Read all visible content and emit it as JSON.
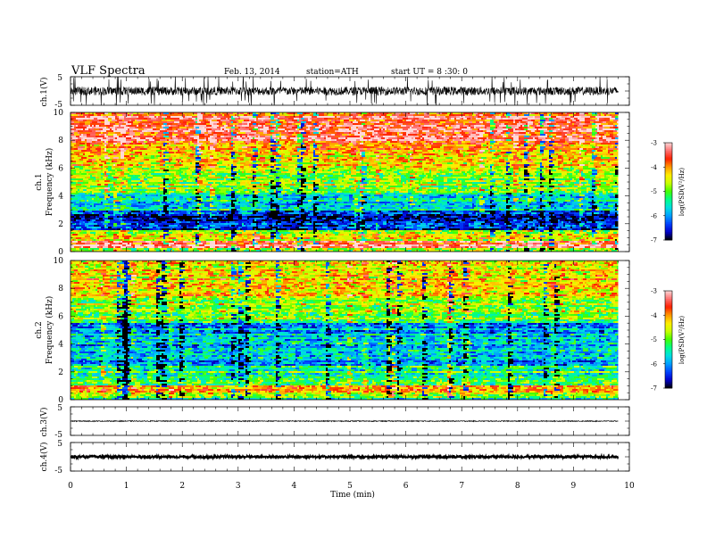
{
  "header": {
    "title": "VLF  Spectra",
    "date": "Feb. 13, 2014",
    "station": "station=ATH",
    "start_time": "start  UT  =   8  :30: 0"
  },
  "chart_data": [
    {
      "type": "line",
      "id": "ch1-waveform",
      "ylabel": "ch.1(V)",
      "ylim": [
        -5,
        5
      ],
      "y_ticks": [
        "5",
        "-5"
      ],
      "x_range_min": [
        0,
        9.8
      ],
      "style": "dense noisy waveform",
      "approx_amplitude_v": 1.5
    },
    {
      "type": "heatmap",
      "id": "ch1-spectrogram",
      "ylabel_channel": "ch.1",
      "ylabel": "Frequency  (kHz)",
      "ylim": [
        0,
        10
      ],
      "y_ticks": [
        "0",
        "2",
        "4",
        "6",
        "8",
        "10"
      ],
      "colorbar": {
        "label": "log(PSD(V²/Hz)",
        "range": [
          -7,
          -3
        ],
        "ticks": [
          "-3",
          "-4",
          "-5",
          "-6",
          "-7"
        ]
      },
      "colormap_stops": [
        "#000000",
        "#0000cc",
        "#0044ff",
        "#00a0ff",
        "#00e0e0",
        "#00ff88",
        "#44ff00",
        "#c8ff00",
        "#ffee00",
        "#ff9900",
        "#ff2000",
        "#ff7070",
        "#ffd8d8"
      ],
      "bands": [
        {
          "fmin": 0,
          "fmax": 0.3,
          "level": -5.0
        },
        {
          "fmin": 0.3,
          "fmax": 0.8,
          "level": -3.3
        },
        {
          "fmin": 0.8,
          "fmax": 1.5,
          "level": -4.6
        },
        {
          "fmin": 1.5,
          "fmax": 3.0,
          "level": -6.5
        },
        {
          "fmin": 3.0,
          "fmax": 4.2,
          "level": -5.6
        },
        {
          "fmin": 4.2,
          "fmax": 6.0,
          "level": -4.8
        },
        {
          "fmin": 6.0,
          "fmax": 7.8,
          "level": -4.2
        },
        {
          "fmin": 7.8,
          "fmax": 10.0,
          "level": -3.5
        }
      ]
    },
    {
      "type": "heatmap",
      "id": "ch2-spectrogram",
      "ylabel_channel": "ch.2",
      "ylabel": "Frequency  (kHz)",
      "ylim": [
        0,
        10
      ],
      "y_ticks": [
        "0",
        "2",
        "4",
        "6",
        "8",
        "10"
      ],
      "colorbar": {
        "label": "log(PSD(V²/Hz)",
        "range": [
          -7,
          -3
        ],
        "ticks": [
          "-3",
          "-4",
          "-5",
          "-6",
          "-7"
        ]
      },
      "bands": [
        {
          "fmin": 0,
          "fmax": 0.4,
          "level": -5.2
        },
        {
          "fmin": 0.4,
          "fmax": 1.0,
          "level": -4.3
        },
        {
          "fmin": 1.0,
          "fmax": 2.5,
          "level": -5.2
        },
        {
          "fmin": 2.5,
          "fmax": 5.5,
          "level": -5.8
        },
        {
          "fmin": 5.5,
          "fmax": 7.5,
          "level": -4.8
        },
        {
          "fmin": 7.5,
          "fmax": 10.0,
          "level": -4.2
        }
      ]
    },
    {
      "type": "line",
      "id": "ch3-waveform",
      "ylabel": "ch.3(V)",
      "ylim": [
        -5,
        5
      ],
      "y_ticks": [
        "5",
        "-5"
      ],
      "x_range_min": [
        0,
        9.8
      ],
      "approx_level_v": 0,
      "approx_amplitude_v": 0.15
    },
    {
      "type": "line",
      "id": "ch4-waveform",
      "ylabel": "ch.4(V)",
      "ylim": [
        -5,
        5
      ],
      "y_ticks": [
        "5",
        "-5"
      ],
      "x_range_min": [
        0,
        9.8
      ],
      "approx_level_v": 0,
      "approx_amplitude_v": 0.4
    }
  ],
  "x_axis": {
    "label": "Time  (min)",
    "range": [
      0,
      10
    ],
    "ticks": [
      "0",
      "1",
      "2",
      "3",
      "4",
      "5",
      "6",
      "7",
      "8",
      "9",
      "10"
    ]
  }
}
